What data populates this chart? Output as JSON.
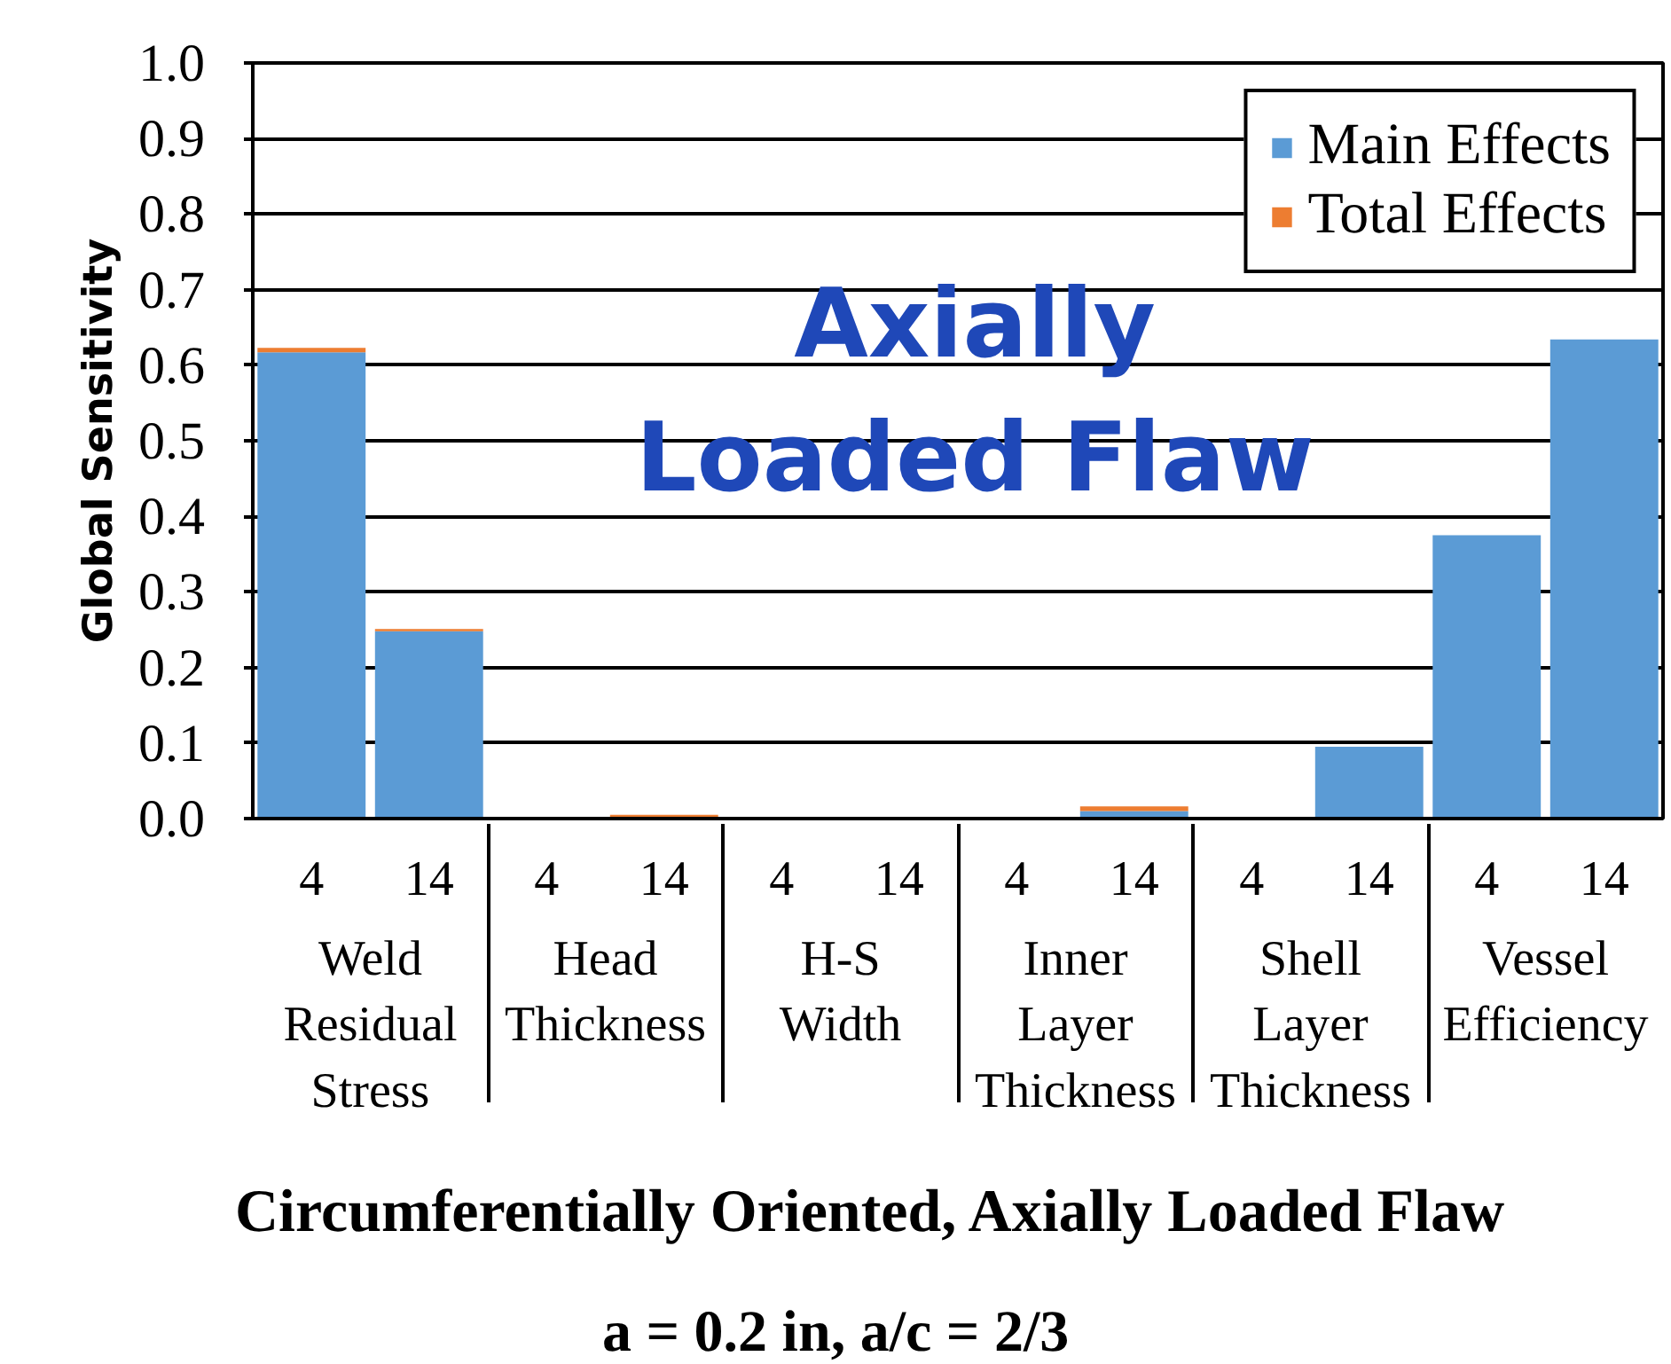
{
  "chart_data": {
    "type": "bar",
    "stacked": true,
    "title": "Circumferentially Oriented, Axially Loaded Flaw",
    "subtitle": "a = 0.2 in, a/c = 2/3",
    "ylabel": "Global Sensitivity",
    "annotations": [
      "Axially\nLoaded Flaw"
    ],
    "categories": [
      [
        "Weld\nResidual\nStress",
        "4"
      ],
      [
        null,
        "14"
      ],
      [
        "Head\nThickness",
        "4"
      ],
      [
        null,
        "14"
      ],
      [
        "H-S\nWidth",
        "4"
      ],
      [
        null,
        "14"
      ],
      [
        "Inner\nLayer\nThickness",
        "4"
      ],
      [
        null,
        "14"
      ],
      [
        "Shell\nLayer\nThickness",
        "4"
      ],
      [
        null,
        "14"
      ],
      [
        "Vessel\nEfficiency",
        "4"
      ],
      [
        null,
        "14"
      ]
    ],
    "series": [
      {
        "name": "Main Effects",
        "color": "#5b9bd5",
        "values": [
          0.617,
          0.248,
          0,
          0,
          0,
          0,
          0,
          0.01,
          0,
          0.095,
          0.375,
          0.634
        ]
      },
      {
        "name": "Total Effects",
        "color": "#ed7d31",
        "values": [
          0.006,
          0.003,
          0,
          0.005,
          0,
          0,
          0,
          0.006,
          0,
          0,
          0,
          0
        ]
      }
    ],
    "ylim": [
      0,
      1
    ],
    "yticks": [
      {
        "value": 0,
        "label": "0.0"
      },
      0.1,
      0.2,
      0.3,
      0.4,
      0.5,
      0.6,
      0.7,
      0.8,
      0.9,
      {
        "value": 1,
        "label": "1.0"
      }
    ],
    "grid": "y",
    "legend": "top right"
  }
}
